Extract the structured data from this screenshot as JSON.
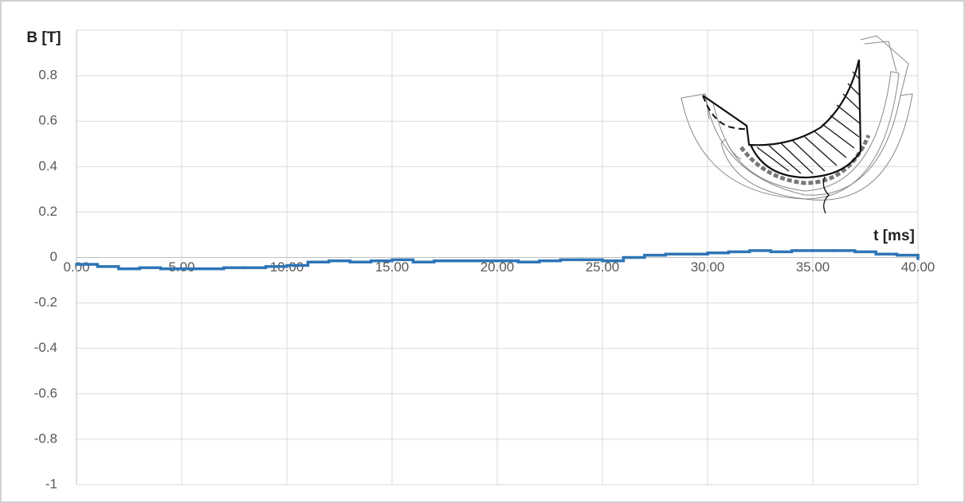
{
  "chart_data": {
    "type": "line",
    "drawstyle": "steps-post",
    "y_label": "B [T]",
    "x_label": "t [ms]",
    "x": [
      0,
      1,
      2,
      3,
      4,
      5,
      6,
      7,
      8,
      9,
      10,
      11,
      12,
      13,
      14,
      15,
      16,
      17,
      18,
      19,
      20,
      21,
      22,
      23,
      24,
      25,
      26,
      27,
      28,
      29,
      30,
      31,
      32,
      33,
      34,
      35,
      36,
      37,
      38,
      39,
      40
    ],
    "series": [
      {
        "color": "#2e75b6",
        "values": [
          -0.03,
          -0.04,
          -0.05,
          -0.045,
          -0.05,
          -0.05,
          -0.05,
          -0.045,
          -0.045,
          -0.04,
          -0.035,
          -0.02,
          -0.015,
          -0.02,
          -0.015,
          -0.01,
          -0.02,
          -0.015,
          -0.015,
          -0.015,
          -0.015,
          -0.02,
          -0.015,
          -0.01,
          -0.01,
          -0.015,
          0,
          0.01,
          0.015,
          0.015,
          0.02,
          0.025,
          0.03,
          0.025,
          0.03,
          0.03,
          0.03,
          0.025,
          0.015,
          0.01,
          -0.005
        ]
      }
    ],
    "xlim": [
      0,
      40
    ],
    "xticks": [
      {
        "value": 0,
        "label": "0.00"
      },
      {
        "value": 5,
        "label": "5.00"
      },
      {
        "value": 10,
        "label": "10.00"
      },
      {
        "value": 15,
        "label": "15.00"
      },
      {
        "value": 20,
        "label": "20.00"
      },
      {
        "value": 25,
        "label": "25.00"
      },
      {
        "value": 30,
        "label": "30.00"
      },
      {
        "value": 35,
        "label": "35.00"
      },
      {
        "value": 40,
        "label": "40.00"
      }
    ],
    "ylim": [
      -1,
      1
    ],
    "yticks": [
      -1,
      -0.8,
      -0.6,
      -0.4,
      -0.2,
      0,
      0.2,
      0.4,
      0.6,
      0.8
    ],
    "grid": true
  }
}
